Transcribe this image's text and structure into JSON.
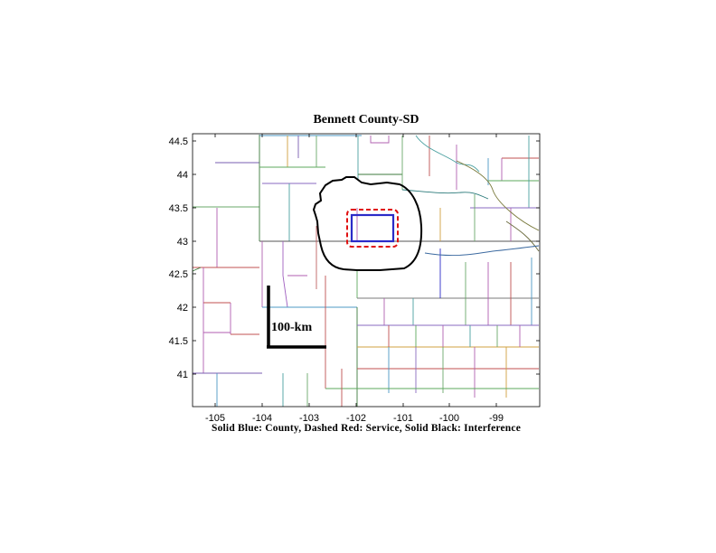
{
  "title": "Bennett County-SD",
  "caption": "Solid Blue: County, Dashed Red: Service, Solid Black: Interference",
  "x_ticks": [
    "-105",
    "-104",
    "-103",
    "-102",
    "-101",
    "-100",
    "-99"
  ],
  "y_ticks": [
    "44.5",
    "44",
    "43.5",
    "43",
    "42.5",
    "42",
    "41.5",
    "41"
  ],
  "scale_label": "100-km",
  "legend_colors": {
    "county": "#2b2bc8",
    "service": "#e01010",
    "interference": "#000000"
  },
  "axis_ranges": {
    "lon": [
      -105.5,
      -98.1
    ],
    "lat": [
      40.55,
      44.6
    ]
  }
}
